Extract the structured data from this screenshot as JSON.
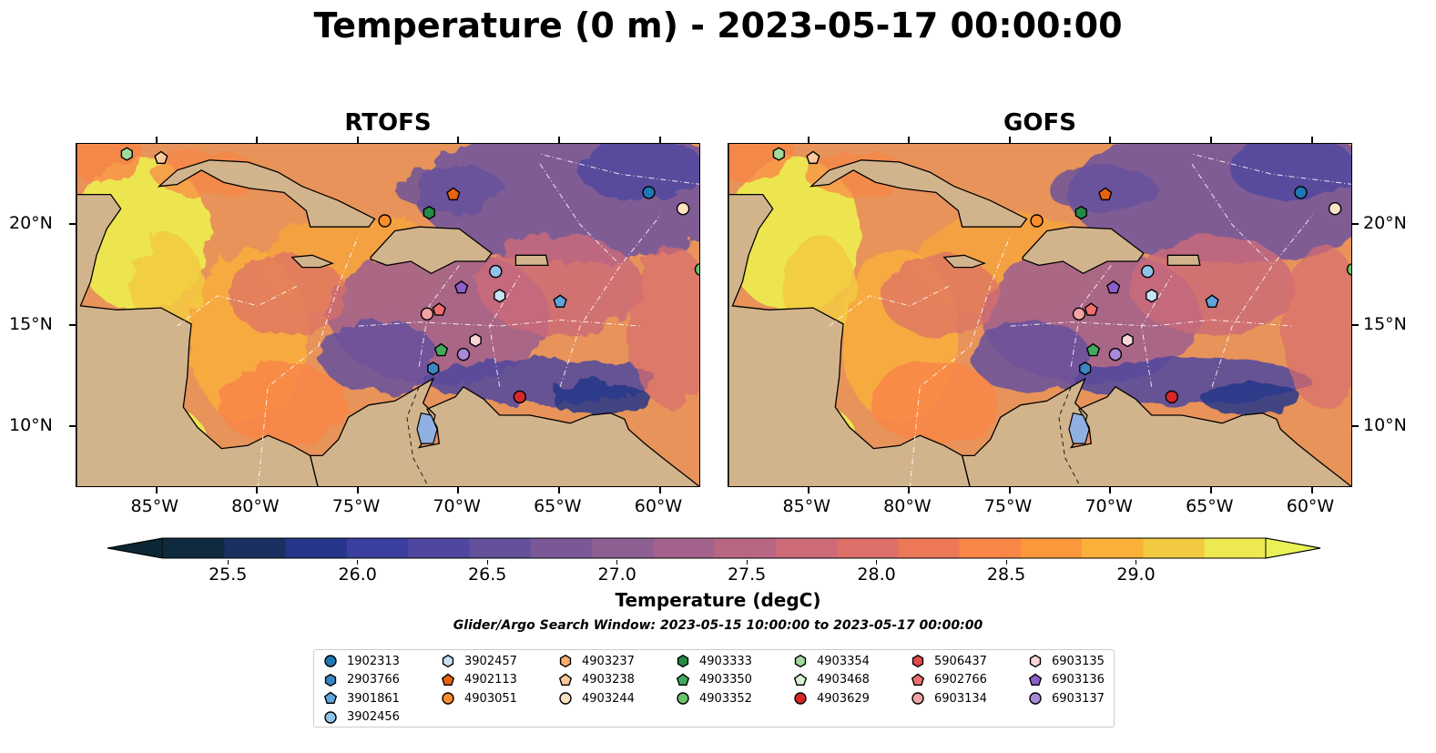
{
  "title": "Temperature (0 m) - 2023-05-17 00:00:00",
  "panels": [
    {
      "name": "RTOFS"
    },
    {
      "name": "GOFS"
    }
  ],
  "map_extent": {
    "lon": [
      -89,
      -58
    ],
    "lat": [
      7,
      24
    ]
  },
  "lon_ticks": [
    -85,
    -80,
    -75,
    -70,
    -65,
    -60
  ],
  "lon_tick_labels": [
    "85°W",
    "80°W",
    "75°W",
    "70°W",
    "65°W",
    "60°W"
  ],
  "lat_ticks": [
    10,
    15,
    20
  ],
  "lat_tick_labels": [
    "10°N",
    "15°N",
    "20°N"
  ],
  "colorbar": {
    "label": "Temperature (degC)",
    "min": 25.25,
    "max": 29.5,
    "ticks": [
      "25.5",
      "26.0",
      "26.5",
      "27.0",
      "27.5",
      "28.0",
      "28.5",
      "29.0"
    ],
    "colors": [
      "#0f2a3e",
      "#1a3060",
      "#26368a",
      "#3a3fa0",
      "#4f479f",
      "#65509c",
      "#7a5898",
      "#8d5f93",
      "#a3628c",
      "#b96684",
      "#cc6a78",
      "#dc6f68",
      "#ed7857",
      "#f88646",
      "#fb983b",
      "#fbb03a",
      "#f2ca41",
      "#ede950"
    ],
    "under_color": "#0d2636",
    "over_color": "#e8f257"
  },
  "search_window": "Glider/Argo Search Window: 2023-05-15 10:00:00 to 2023-05-17 00:00:00",
  "legend": [
    {
      "id": "1902313",
      "shape": "circle",
      "color": "#1f77b4"
    },
    {
      "id": "2903766",
      "shape": "hexagon",
      "color": "#3a87c4"
    },
    {
      "id": "3901861",
      "shape": "pentagon",
      "color": "#5fa5dc"
    },
    {
      "id": "3902456",
      "shape": "circle",
      "color": "#8fc3ea"
    },
    {
      "id": "3902457",
      "shape": "hexagon",
      "color": "#c6e2f5"
    },
    {
      "id": "4902113",
      "shape": "pentagon",
      "color": "#e6640f"
    },
    {
      "id": "4903051",
      "shape": "circle",
      "color": "#fd8d2d"
    },
    {
      "id": "4903237",
      "shape": "hexagon",
      "color": "#fdae6b"
    },
    {
      "id": "4903238",
      "shape": "pentagon",
      "color": "#fdc99a"
    },
    {
      "id": "4903244",
      "shape": "circle",
      "color": "#fde2c6"
    },
    {
      "id": "4903333",
      "shape": "hexagon",
      "color": "#238b45"
    },
    {
      "id": "4903350",
      "shape": "pentagon",
      "color": "#41ab5d"
    },
    {
      "id": "4903352",
      "shape": "circle",
      "color": "#6bc36b"
    },
    {
      "id": "4903354",
      "shape": "hexagon",
      "color": "#a1d99b"
    },
    {
      "id": "4903468",
      "shape": "pentagon",
      "color": "#d9f0d3"
    },
    {
      "id": "4903629",
      "shape": "circle",
      "color": "#d62728"
    },
    {
      "id": "5906437",
      "shape": "hexagon",
      "color": "#e34a4a"
    },
    {
      "id": "6902766",
      "shape": "pentagon",
      "color": "#f07070"
    },
    {
      "id": "6903134",
      "shape": "circle",
      "color": "#f4a3a3"
    },
    {
      "id": "6903135",
      "shape": "hexagon",
      "color": "#fbd5d5"
    },
    {
      "id": "6903136",
      "shape": "pentagon",
      "color": "#8c5fc8"
    },
    {
      "id": "6903137",
      "shape": "circle",
      "color": "#a88ad6"
    }
  ],
  "markers": [
    {
      "id": "1902313",
      "lon": -60.6,
      "lat": 21.6
    },
    {
      "id": "6903135",
      "lon": -69.2,
      "lat": 14.3
    },
    {
      "id": "4903244",
      "lon": -58.9,
      "lat": 20.8
    },
    {
      "id": "4903051",
      "lon": -73.7,
      "lat": 20.2
    },
    {
      "id": "4903333",
      "lon": -71.5,
      "lat": 20.6
    },
    {
      "id": "4902113",
      "lon": -70.3,
      "lat": 21.5
    },
    {
      "id": "4903354",
      "lon": -86.5,
      "lat": 23.5
    },
    {
      "id": "4903238",
      "lon": -84.8,
      "lat": 23.3
    },
    {
      "id": "3902456",
      "lon": -68.2,
      "lat": 17.7
    },
    {
      "id": "3902457",
      "lon": -68.0,
      "lat": 16.5
    },
    {
      "id": "6903136",
      "lon": -69.9,
      "lat": 16.9
    },
    {
      "id": "3901861",
      "lon": -65.0,
      "lat": 16.2
    },
    {
      "id": "6903134",
      "lon": -71.6,
      "lat": 15.6
    },
    {
      "id": "6902766",
      "lon": -71.0,
      "lat": 15.8
    },
    {
      "id": "4903350",
      "lon": -70.9,
      "lat": 13.8
    },
    {
      "id": "6903137",
      "lon": -69.8,
      "lat": 13.6
    },
    {
      "id": "2903766",
      "lon": -71.3,
      "lat": 12.9
    },
    {
      "id": "4903629",
      "lon": -67.0,
      "lat": 11.5
    },
    {
      "id": "4903352",
      "lon": -58.0,
      "lat": 17.8
    }
  ]
}
